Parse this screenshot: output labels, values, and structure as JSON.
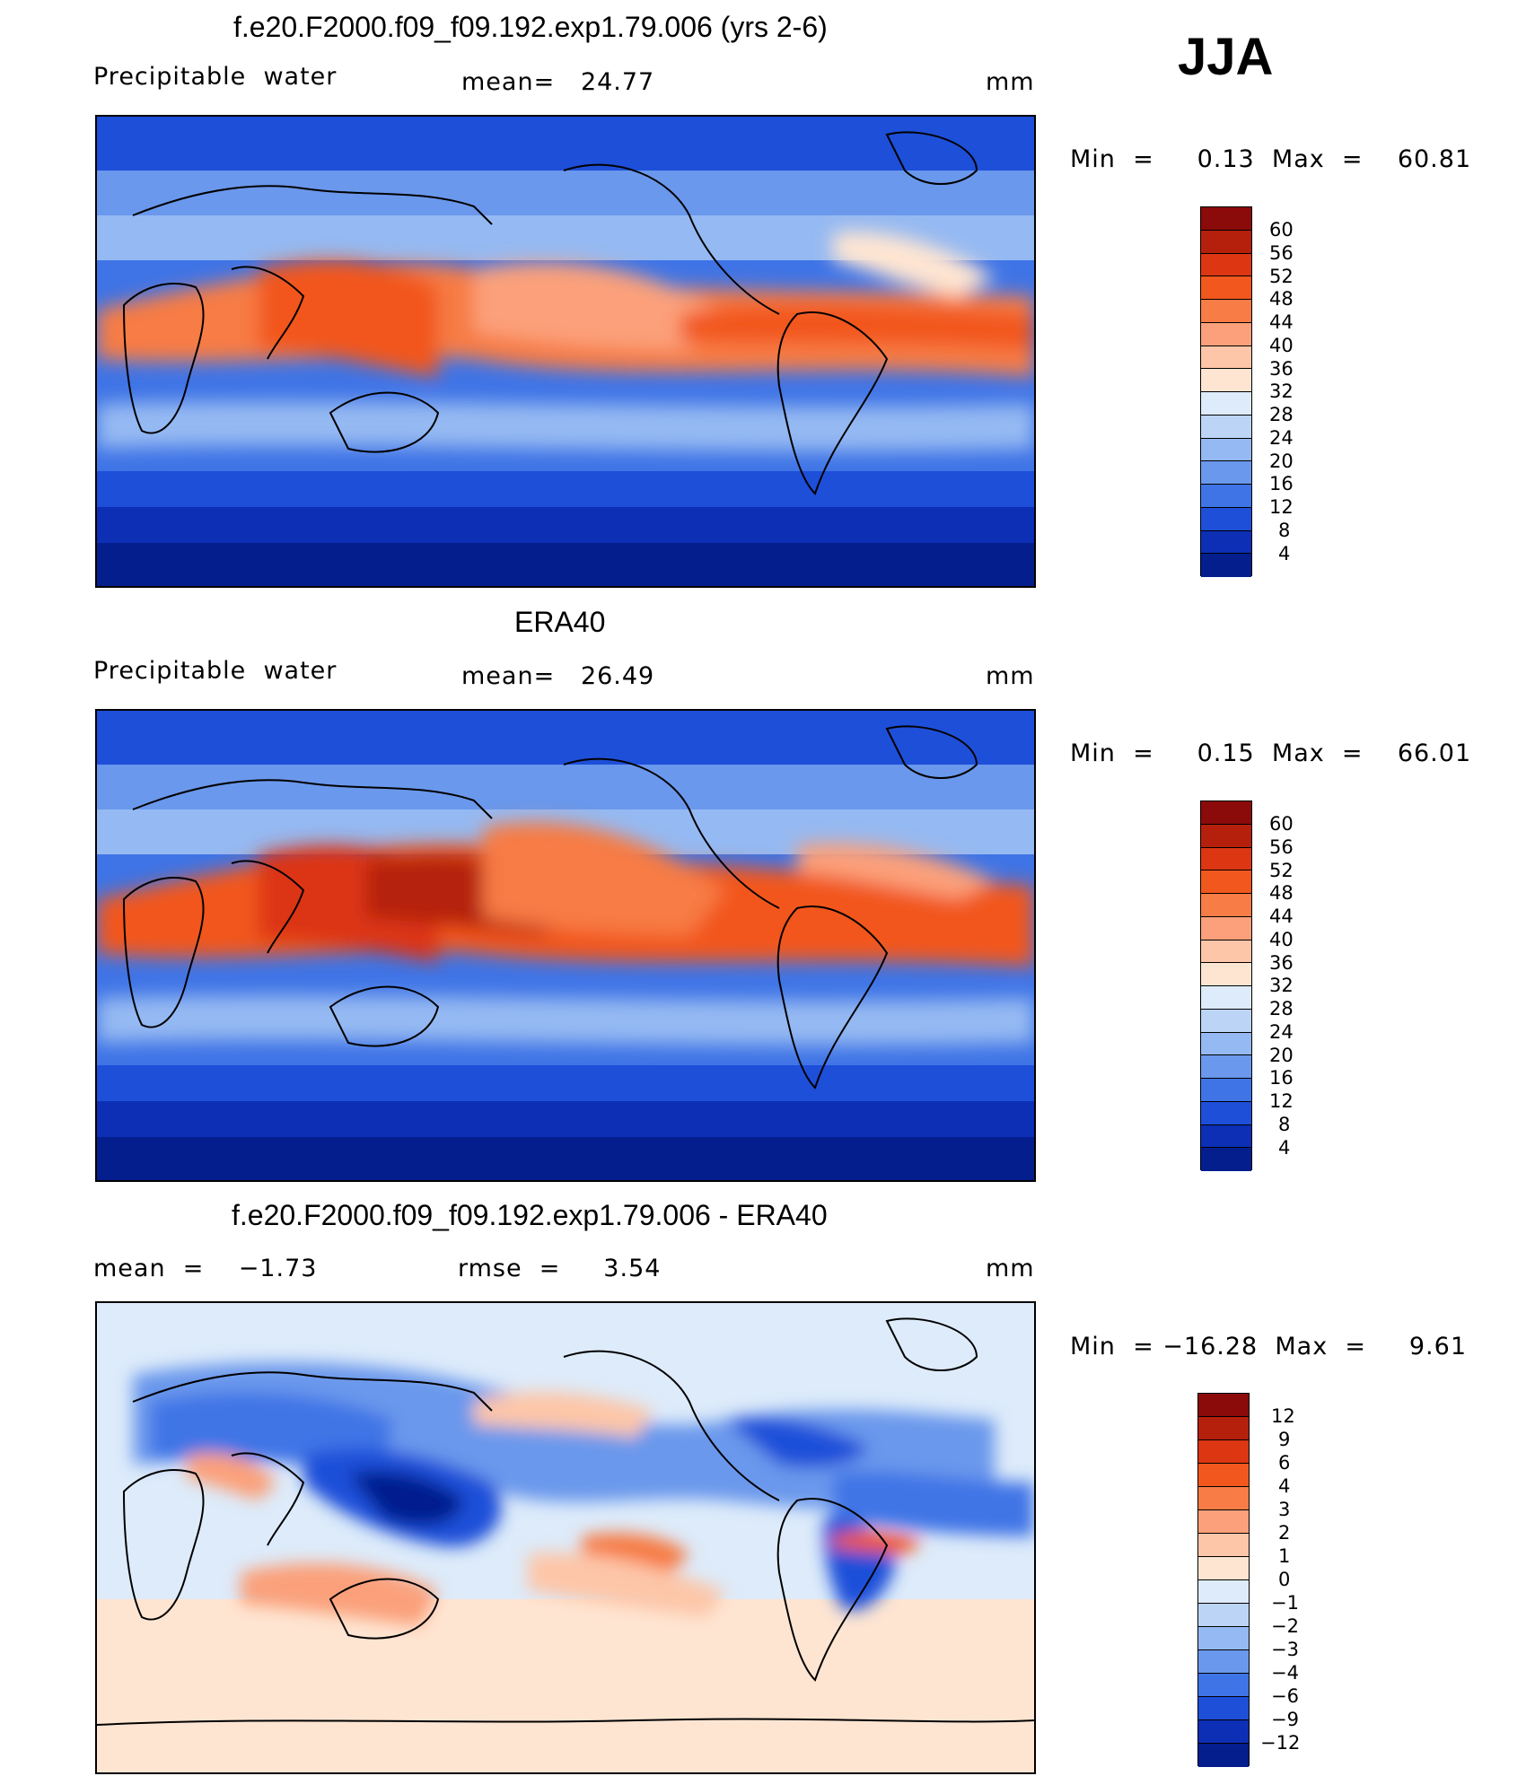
{
  "season": "JJA",
  "panels": [
    {
      "title": "f.e20.F2000.f09_f09.192.exp1.79.006 (yrs 2-6)",
      "left_label": "Precipitable  water",
      "mid_label": "mean=   24.77",
      "unit": "mm",
      "minmax": "Min  =     0.13  Max  =    60.81",
      "levels": [
        "60",
        "56",
        "52",
        "48",
        "44",
        "40",
        "36",
        "32",
        "28",
        "24",
        "20",
        "16",
        "12",
        "8",
        "4"
      ],
      "palette": "abs"
    },
    {
      "title": "ERA40",
      "left_label": "Precipitable  water",
      "mid_label": "mean=   26.49",
      "unit": "mm",
      "minmax": "Min  =     0.15  Max  =    66.01",
      "levels": [
        "60",
        "56",
        "52",
        "48",
        "44",
        "40",
        "36",
        "32",
        "28",
        "24",
        "20",
        "16",
        "12",
        "8",
        "4"
      ],
      "palette": "abs"
    },
    {
      "title": "f.e20.F2000.f09_f09.192.exp1.79.006 - ERA40",
      "left_label": "mean  =    −1.73",
      "mid_label": "rmse  =     3.54",
      "unit": "mm",
      "minmax": "Min  = −16.28  Max  =     9.61",
      "levels": [
        "12",
        "9",
        "6",
        "4",
        "3",
        "2",
        "1",
        "0",
        "−1",
        "−2",
        "−3",
        "−4",
        "−6",
        "−9",
        "−12"
      ],
      "palette": "diff"
    }
  ],
  "colors": {
    "abs_scale": [
      "#8b0a0a",
      "#b5200d",
      "#dc3612",
      "#f2571e",
      "#f77c45",
      "#fba07a",
      "#fdc6a8",
      "#fee5d2",
      "#ddebfa",
      "#bcd5f7",
      "#95b9f2",
      "#6a98ec",
      "#3f74e6",
      "#1e4fd9",
      "#0c2fb5",
      "#041e8e"
    ],
    "diff_scale": [
      "#8b0a0a",
      "#b5200d",
      "#dc3612",
      "#f2571e",
      "#f77c45",
      "#fba07a",
      "#fdc6a8",
      "#fee5d2",
      "#ddebfa",
      "#bcd5f7",
      "#95b9f2",
      "#6a98ec",
      "#3f74e6",
      "#1e4fd9",
      "#0c2fb5",
      "#041e8e"
    ]
  }
}
